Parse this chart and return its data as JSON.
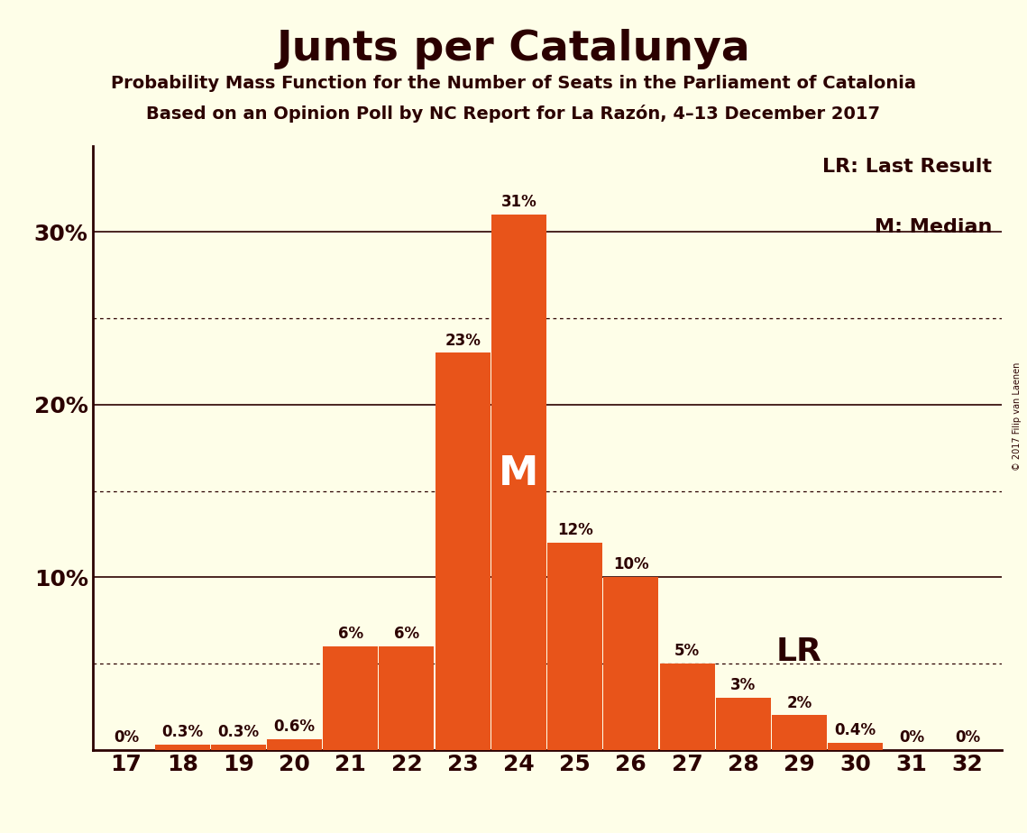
{
  "title": "Junts per Catalunya",
  "subtitle1": "Probability Mass Function for the Number of Seats in the Parliament of Catalonia",
  "subtitle2": "Based on an Opinion Poll by NC Report for La Razón, 4–13 December 2017",
  "copyright": "© 2017 Filip van Laenen",
  "seats": [
    17,
    18,
    19,
    20,
    21,
    22,
    23,
    24,
    25,
    26,
    27,
    28,
    29,
    30,
    31,
    32
  ],
  "probabilities": [
    0.0,
    0.3,
    0.3,
    0.6,
    6.0,
    6.0,
    23.0,
    31.0,
    12.0,
    10.0,
    5.0,
    3.0,
    2.0,
    0.4,
    0.0,
    0.0
  ],
  "bar_color": "#E8541A",
  "background_color": "#FEFEE8",
  "text_color": "#2B0000",
  "median_seat": 24,
  "last_result_seat": 29,
  "yticks": [
    0,
    10,
    20,
    30
  ],
  "ymax": 35,
  "legend_lr": "LR: Last Result",
  "legend_m": "M: Median",
  "dotted_grid_levels": [
    5,
    15,
    25
  ],
  "solid_grid_levels": [
    10,
    20,
    30
  ],
  "label_fontsize": 12,
  "title_fontsize": 34,
  "subtitle_fontsize": 14,
  "ytick_fontsize": 18,
  "xtick_fontsize": 18
}
